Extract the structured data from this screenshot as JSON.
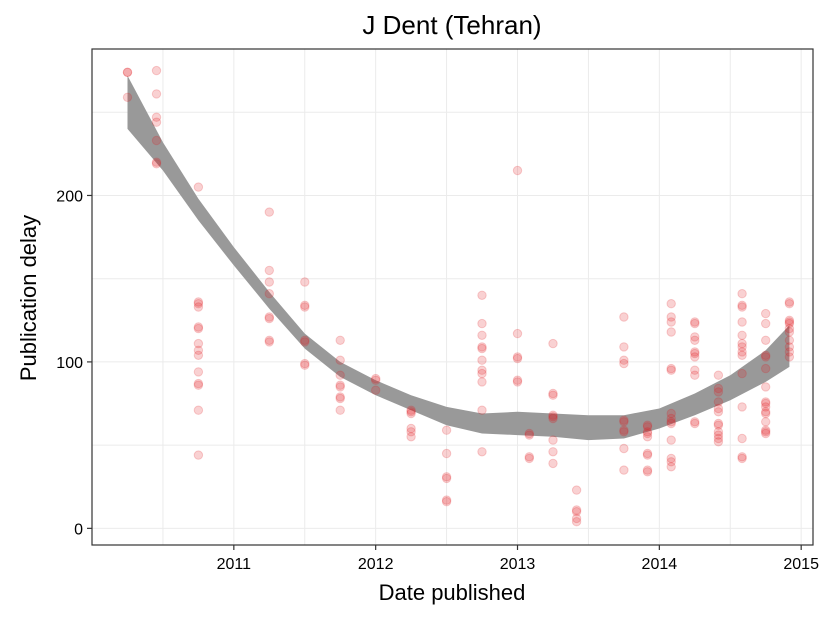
{
  "chart_data": {
    "type": "scatter",
    "title": "J Dent (Tehran)",
    "xlabel": "Date published",
    "ylabel": "Publication delay",
    "x_ticks": [
      "2011",
      "2012",
      "2013",
      "2014",
      "2015"
    ],
    "y_ticks": [
      "0",
      "100",
      "200"
    ],
    "xlim": [
      "2010-01-01",
      "2015-02-01"
    ],
    "ylim": [
      -10,
      288
    ],
    "grid": true,
    "point_color": "#e31a1c",
    "point_alpha": 0.2,
    "smooth_color": "#999999",
    "points": [
      [
        "2010-04-01",
        274
      ],
      [
        "2010-04-01",
        274
      ],
      [
        "2010-04-01",
        259
      ],
      [
        "2010-06-15",
        275
      ],
      [
        "2010-06-15",
        261
      ],
      [
        "2010-06-15",
        247
      ],
      [
        "2010-06-15",
        244
      ],
      [
        "2010-06-15",
        233
      ],
      [
        "2010-06-15",
        220
      ],
      [
        "2010-06-15",
        219
      ],
      [
        "2010-10-01",
        205
      ],
      [
        "2010-10-01",
        136
      ],
      [
        "2010-10-01",
        135
      ],
      [
        "2010-10-01",
        133
      ],
      [
        "2010-10-01",
        121
      ],
      [
        "2010-10-01",
        120
      ],
      [
        "2010-10-01",
        111
      ],
      [
        "2010-10-01",
        107
      ],
      [
        "2010-10-01",
        104
      ],
      [
        "2010-10-01",
        94
      ],
      [
        "2010-10-01",
        87
      ],
      [
        "2010-10-01",
        86
      ],
      [
        "2010-10-01",
        71
      ],
      [
        "2010-10-01",
        44
      ],
      [
        "2011-04-01",
        190
      ],
      [
        "2011-04-01",
        155
      ],
      [
        "2011-04-01",
        148
      ],
      [
        "2011-04-01",
        141
      ],
      [
        "2011-04-01",
        127
      ],
      [
        "2011-04-01",
        126
      ],
      [
        "2011-04-01",
        113
      ],
      [
        "2011-04-01",
        112
      ],
      [
        "2011-07-01",
        148
      ],
      [
        "2011-07-01",
        134
      ],
      [
        "2011-07-01",
        133
      ],
      [
        "2011-07-01",
        113
      ],
      [
        "2011-07-01",
        112
      ],
      [
        "2011-07-01",
        99
      ],
      [
        "2011-07-01",
        98
      ],
      [
        "2011-10-01",
        113
      ],
      [
        "2011-10-01",
        101
      ],
      [
        "2011-10-01",
        92
      ],
      [
        "2011-10-01",
        86
      ],
      [
        "2011-10-01",
        85
      ],
      [
        "2011-10-01",
        79
      ],
      [
        "2011-10-01",
        78
      ],
      [
        "2011-10-01",
        71
      ],
      [
        "2012-01-01",
        90
      ],
      [
        "2012-01-01",
        89
      ],
      [
        "2012-01-01",
        83
      ],
      [
        "2012-04-01",
        71
      ],
      [
        "2012-04-01",
        70
      ],
      [
        "2012-04-01",
        69
      ],
      [
        "2012-04-01",
        60
      ],
      [
        "2012-04-01",
        58
      ],
      [
        "2012-04-01",
        55
      ],
      [
        "2012-07-01",
        59
      ],
      [
        "2012-07-01",
        45
      ],
      [
        "2012-07-01",
        31
      ],
      [
        "2012-07-01",
        30
      ],
      [
        "2012-07-01",
        17
      ],
      [
        "2012-07-01",
        16
      ],
      [
        "2012-10-01",
        140
      ],
      [
        "2012-10-01",
        123
      ],
      [
        "2012-10-01",
        116
      ],
      [
        "2012-10-01",
        109
      ],
      [
        "2012-10-01",
        108
      ],
      [
        "2012-10-01",
        101
      ],
      [
        "2012-10-01",
        95
      ],
      [
        "2012-10-01",
        93
      ],
      [
        "2012-10-01",
        88
      ],
      [
        "2012-10-01",
        71
      ],
      [
        "2012-10-01",
        46
      ],
      [
        "2013-01-01",
        215
      ],
      [
        "2013-01-01",
        117
      ],
      [
        "2013-01-01",
        103
      ],
      [
        "2013-01-01",
        102
      ],
      [
        "2013-01-01",
        89
      ],
      [
        "2013-01-01",
        88
      ],
      [
        "2013-02-01",
        57
      ],
      [
        "2013-02-01",
        56
      ],
      [
        "2013-02-01",
        43
      ],
      [
        "2013-02-01",
        42
      ],
      [
        "2013-04-01",
        111
      ],
      [
        "2013-04-01",
        81
      ],
      [
        "2013-04-01",
        80
      ],
      [
        "2013-04-01",
        68
      ],
      [
        "2013-04-01",
        67
      ],
      [
        "2013-04-01",
        66
      ],
      [
        "2013-04-01",
        53
      ],
      [
        "2013-04-01",
        46
      ],
      [
        "2013-04-01",
        39
      ],
      [
        "2013-06-01",
        23
      ],
      [
        "2013-06-01",
        11
      ],
      [
        "2013-06-01",
        10
      ],
      [
        "2013-06-01",
        6
      ],
      [
        "2013-06-01",
        4
      ],
      [
        "2013-10-01",
        127
      ],
      [
        "2013-10-01",
        109
      ],
      [
        "2013-10-01",
        101
      ],
      [
        "2013-10-01",
        99
      ],
      [
        "2013-10-01",
        65
      ],
      [
        "2013-10-01",
        64
      ],
      [
        "2013-10-01",
        59
      ],
      [
        "2013-10-01",
        58
      ],
      [
        "2013-10-01",
        48
      ],
      [
        "2013-10-01",
        35
      ],
      [
        "2013-12-01",
        62
      ],
      [
        "2013-12-01",
        61
      ],
      [
        "2013-12-01",
        58
      ],
      [
        "2013-12-01",
        57
      ],
      [
        "2013-12-01",
        55
      ],
      [
        "2013-12-01",
        45
      ],
      [
        "2013-12-01",
        44
      ],
      [
        "2013-12-01",
        35
      ],
      [
        "2013-12-01",
        34
      ],
      [
        "2014-02-01",
        135
      ],
      [
        "2014-02-01",
        127
      ],
      [
        "2014-02-01",
        124
      ],
      [
        "2014-02-01",
        118
      ],
      [
        "2014-02-01",
        96
      ],
      [
        "2014-02-01",
        95
      ],
      [
        "2014-02-01",
        69
      ],
      [
        "2014-02-01",
        66
      ],
      [
        "2014-02-01",
        64
      ],
      [
        "2014-02-01",
        63
      ],
      [
        "2014-02-01",
        53
      ],
      [
        "2014-02-01",
        42
      ],
      [
        "2014-02-01",
        40
      ],
      [
        "2014-02-01",
        37
      ],
      [
        "2014-04-01",
        124
      ],
      [
        "2014-04-01",
        123
      ],
      [
        "2014-04-01",
        115
      ],
      [
        "2014-04-01",
        113
      ],
      [
        "2014-04-01",
        106
      ],
      [
        "2014-04-01",
        105
      ],
      [
        "2014-04-01",
        103
      ],
      [
        "2014-04-01",
        95
      ],
      [
        "2014-04-01",
        92
      ],
      [
        "2014-04-01",
        64
      ],
      [
        "2014-04-01",
        63
      ],
      [
        "2014-06-01",
        92
      ],
      [
        "2014-06-01",
        84
      ],
      [
        "2014-06-01",
        82
      ],
      [
        "2014-06-01",
        76
      ],
      [
        "2014-06-01",
        72
      ],
      [
        "2014-06-01",
        70
      ],
      [
        "2014-06-01",
        63
      ],
      [
        "2014-06-01",
        62
      ],
      [
        "2014-06-01",
        58
      ],
      [
        "2014-06-01",
        56
      ],
      [
        "2014-06-01",
        54
      ],
      [
        "2014-06-01",
        52
      ],
      [
        "2014-08-01",
        141
      ],
      [
        "2014-08-01",
        134
      ],
      [
        "2014-08-01",
        133
      ],
      [
        "2014-08-01",
        124
      ],
      [
        "2014-08-01",
        116
      ],
      [
        "2014-08-01",
        111
      ],
      [
        "2014-08-01",
        109
      ],
      [
        "2014-08-01",
        106
      ],
      [
        "2014-08-01",
        104
      ],
      [
        "2014-08-01",
        93
      ],
      [
        "2014-08-01",
        73
      ],
      [
        "2014-08-01",
        54
      ],
      [
        "2014-08-01",
        43
      ],
      [
        "2014-08-01",
        42
      ],
      [
        "2014-10-01",
        129
      ],
      [
        "2014-10-01",
        123
      ],
      [
        "2014-10-01",
        113
      ],
      [
        "2014-10-01",
        104
      ],
      [
        "2014-10-01",
        103
      ],
      [
        "2014-10-01",
        96
      ],
      [
        "2014-10-01",
        85
      ],
      [
        "2014-10-01",
        76
      ],
      [
        "2014-10-01",
        75
      ],
      [
        "2014-10-01",
        73
      ],
      [
        "2014-10-01",
        70
      ],
      [
        "2014-10-01",
        69
      ],
      [
        "2014-10-01",
        64
      ],
      [
        "2014-10-01",
        59
      ],
      [
        "2014-10-01",
        58
      ],
      [
        "2014-10-01",
        57
      ],
      [
        "2014-12-01",
        136
      ],
      [
        "2014-12-01",
        135
      ],
      [
        "2014-12-01",
        125
      ],
      [
        "2014-12-01",
        124
      ],
      [
        "2014-12-01",
        123
      ],
      [
        "2014-12-01",
        120
      ],
      [
        "2014-12-01",
        118
      ],
      [
        "2014-12-01",
        113
      ],
      [
        "2014-12-01",
        109
      ],
      [
        "2014-12-01",
        106
      ],
      [
        "2014-12-01",
        103
      ]
    ],
    "smooth_band": [
      {
        "x": "2010-04-01",
        "lower": 240,
        "upper": 272
      },
      {
        "x": "2010-07-01",
        "lower": 215,
        "upper": 232
      },
      {
        "x": "2010-10-01",
        "lower": 185,
        "upper": 198
      },
      {
        "x": "2011-01-01",
        "lower": 158,
        "upper": 169
      },
      {
        "x": "2011-04-01",
        "lower": 132,
        "upper": 142
      },
      {
        "x": "2011-07-01",
        "lower": 108,
        "upper": 117
      },
      {
        "x": "2011-10-01",
        "lower": 91,
        "upper": 100
      },
      {
        "x": "2012-01-01",
        "lower": 80,
        "upper": 89
      },
      {
        "x": "2012-04-01",
        "lower": 71,
        "upper": 80
      },
      {
        "x": "2012-07-01",
        "lower": 62,
        "upper": 73
      },
      {
        "x": "2012-10-01",
        "lower": 57,
        "upper": 69
      },
      {
        "x": "2013-01-01",
        "lower": 56,
        "upper": 70
      },
      {
        "x": "2013-04-01",
        "lower": 55,
        "upper": 69
      },
      {
        "x": "2013-07-01",
        "lower": 53,
        "upper": 68
      },
      {
        "x": "2013-10-01",
        "lower": 54,
        "upper": 68
      },
      {
        "x": "2014-01-01",
        "lower": 60,
        "upper": 72
      },
      {
        "x": "2014-04-01",
        "lower": 68,
        "upper": 81
      },
      {
        "x": "2014-07-01",
        "lower": 77,
        "upper": 92
      },
      {
        "x": "2014-10-01",
        "lower": 88,
        "upper": 107
      },
      {
        "x": "2014-12-01",
        "lower": 97,
        "upper": 122
      }
    ]
  }
}
